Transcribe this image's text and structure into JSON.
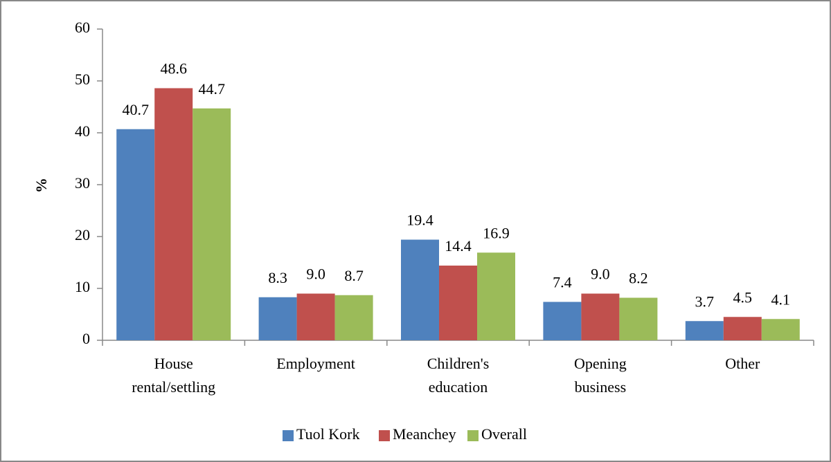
{
  "chart_data": {
    "type": "bar",
    "categories": [
      "House rental/settling",
      "Employment",
      "Children's education",
      "Opening business",
      "Other"
    ],
    "series": [
      {
        "name": "Tuol Kork",
        "color": "#4f81bd",
        "values": [
          40.7,
          8.3,
          19.4,
          7.4,
          3.7
        ],
        "value_labels": [
          "40.7",
          "8.3",
          "19.4",
          "7.4",
          "3.7"
        ]
      },
      {
        "name": "Meanchey",
        "color": "#c0504d",
        "values": [
          48.6,
          9,
          14.4,
          9,
          4.5
        ],
        "value_labels": [
          "48.6",
          "9.0",
          "14.4",
          "9.0",
          "4.5"
        ]
      },
      {
        "name": "Overall",
        "color": "#9bbb59",
        "values": [
          44.7,
          8.7,
          16.9,
          8.2,
          4.1
        ],
        "value_labels": [
          "44.7",
          "8.7",
          "16.9",
          "8.2",
          "4.1"
        ]
      }
    ],
    "ylabel": "%",
    "ylim": [
      0,
      60
    ],
    "yticks": [
      0,
      10,
      20,
      30,
      40,
      50,
      60
    ],
    "grid": false,
    "legend": "bottom"
  }
}
